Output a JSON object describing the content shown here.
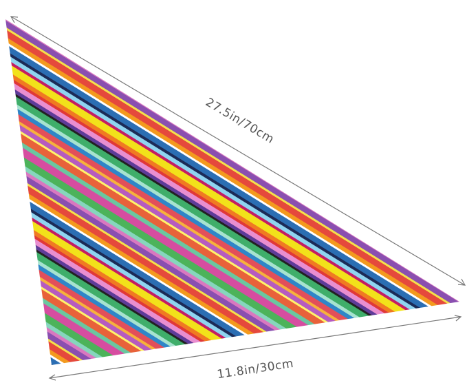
{
  "labels": {
    "diagonal": "27.5in/70cm",
    "bottom": "11.8in/30cm"
  }
}
